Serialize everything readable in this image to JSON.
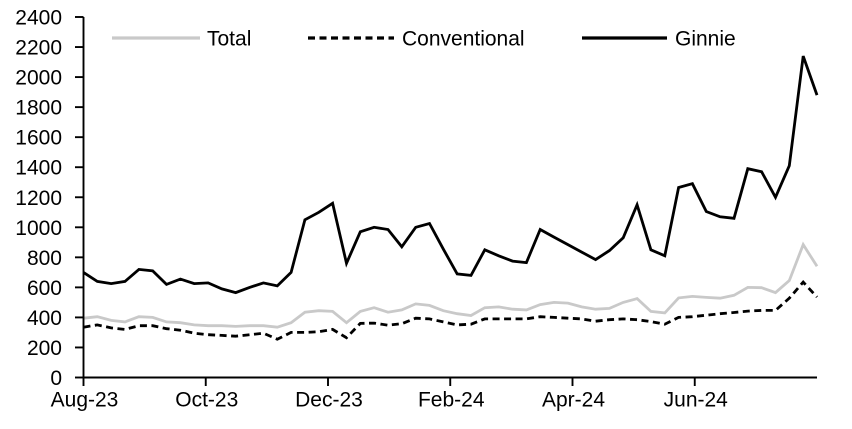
{
  "chart_data": {
    "type": "line",
    "title": "",
    "xlabel": "",
    "ylabel": "",
    "frequency": "weekly",
    "y_axis": {
      "min": 0,
      "max": 2400,
      "step": 200
    },
    "x_tick_labels": [
      "Aug-23",
      "Oct-23",
      "Dec-23",
      "Feb-24",
      "Apr-24",
      "Jun-24"
    ],
    "x_tick_month_index": [
      0,
      2,
      4,
      6,
      8,
      10
    ],
    "x_axis_months_span": 12,
    "grid": "off",
    "legend_position": "top",
    "axis_color": "#000000",
    "series": [
      {
        "name": "Total",
        "color": "#c9c9c9",
        "dash": "",
        "values": [
          395,
          405,
          380,
          370,
          405,
          400,
          370,
          365,
          350,
          345,
          345,
          340,
          345,
          345,
          335,
          365,
          435,
          445,
          440,
          365,
          440,
          465,
          435,
          450,
          490,
          480,
          445,
          425,
          413,
          465,
          470,
          455,
          450,
          485,
          500,
          495,
          470,
          455,
          460,
          500,
          525,
          440,
          430,
          530,
          540,
          533,
          528,
          547,
          600,
          598,
          565,
          645,
          885,
          740
        ]
      },
      {
        "name": "Conventional",
        "color": "#000000",
        "dash": "7 4.5",
        "values": [
          335,
          350,
          330,
          320,
          345,
          345,
          325,
          315,
          295,
          285,
          280,
          275,
          285,
          295,
          255,
          300,
          300,
          305,
          320,
          265,
          360,
          362,
          348,
          358,
          395,
          390,
          370,
          350,
          355,
          390,
          390,
          390,
          390,
          405,
          400,
          395,
          390,
          375,
          385,
          390,
          385,
          372,
          355,
          400,
          405,
          415,
          425,
          433,
          442,
          447,
          447,
          528,
          635,
          535
        ]
      },
      {
        "name": "Ginnie",
        "color": "#000000",
        "dash": "",
        "values": [
          700,
          640,
          625,
          640,
          720,
          710,
          620,
          655,
          625,
          630,
          590,
          565,
          600,
          630,
          610,
          700,
          1050,
          1100,
          1160,
          760,
          970,
          1000,
          985,
          870,
          1000,
          1025,
          855,
          690,
          680,
          850,
          810,
          775,
          765,
          985,
          935,
          885,
          835,
          785,
          845,
          930,
          1150,
          850,
          810,
          1265,
          1290,
          1105,
          1070,
          1060,
          1390,
          1370,
          1200,
          1410,
          2140,
          1880
        ]
      }
    ]
  }
}
